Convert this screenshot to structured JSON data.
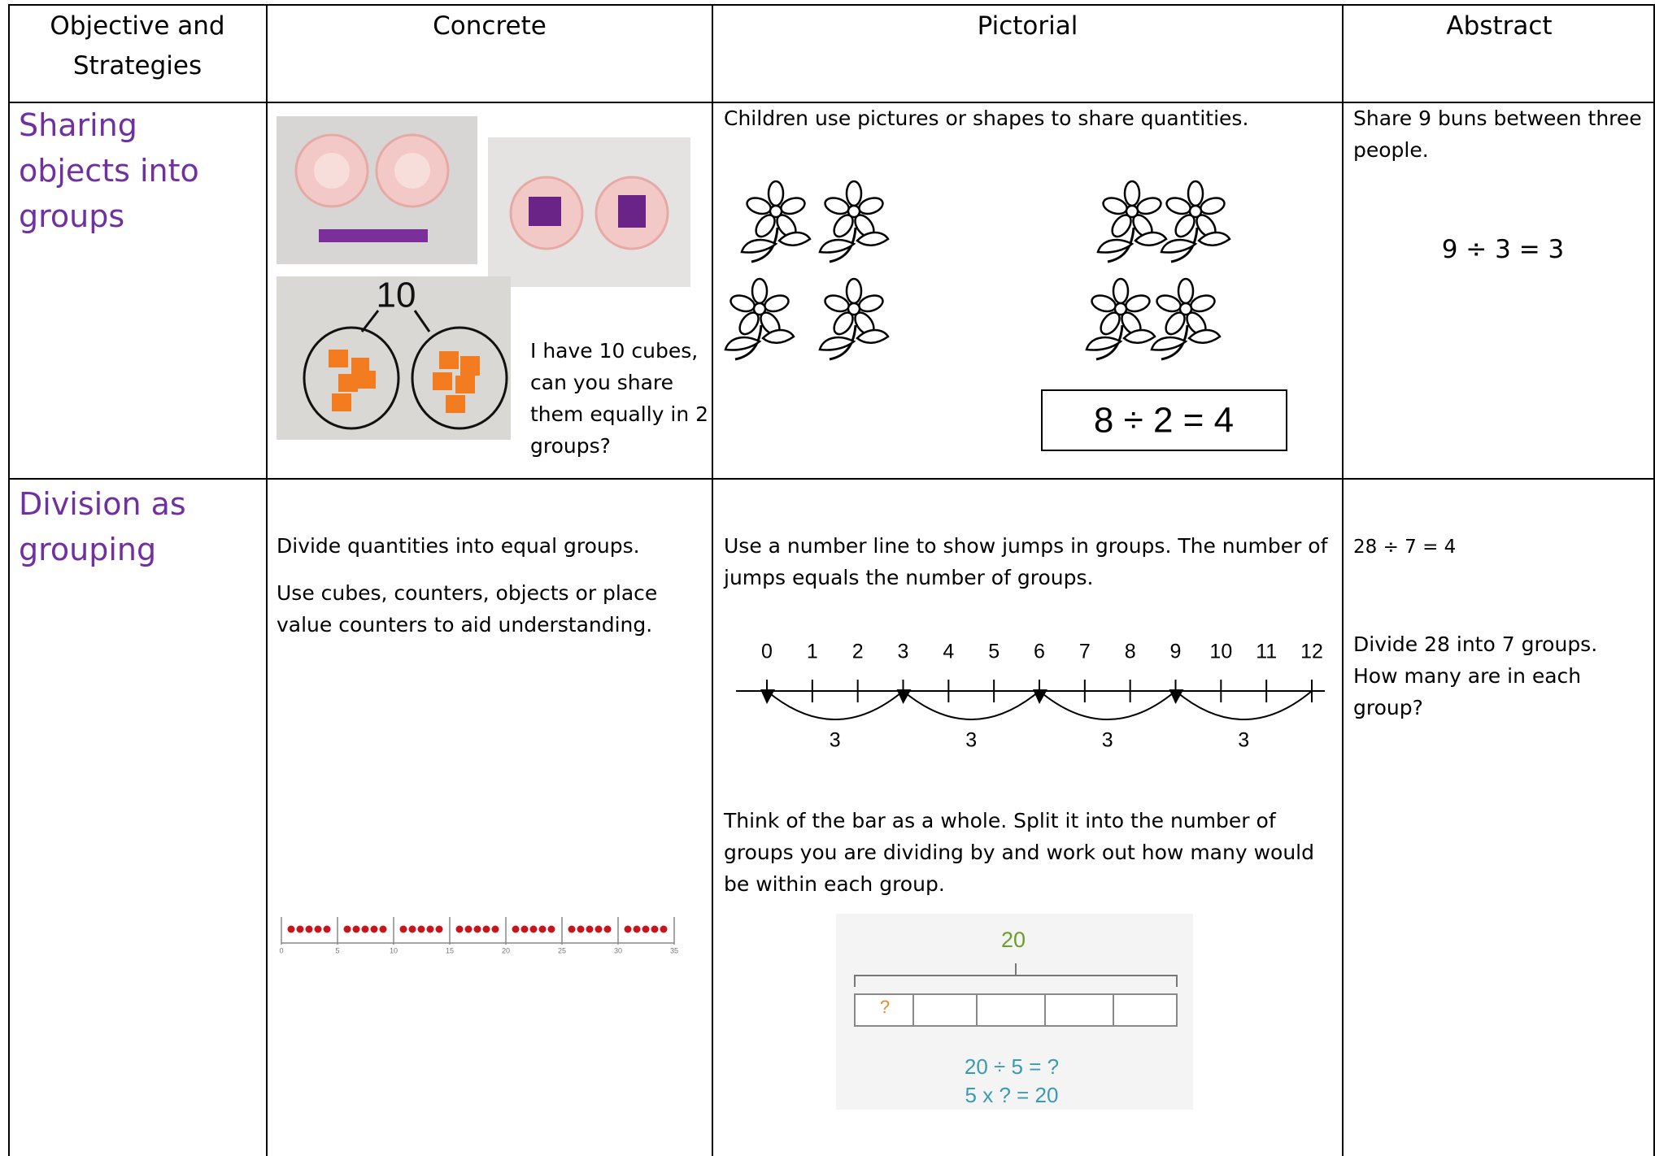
{
  "header": [
    "Objective and Strategies",
    "Concrete",
    "Pictorial",
    "Abstract"
  ],
  "rows": [
    {
      "objective": "Sharing objects into groups",
      "concrete": {
        "photo_label": "10",
        "text": "I have 10 cubes, can you share them equally in 2 groups?"
      },
      "pictorial": {
        "text": "Children use pictures or shapes to share quantities.",
        "equation": "8 ÷ 2 = 4"
      },
      "abstract": {
        "text": "Share 9 buns between three people.",
        "equation": "9 ÷ 3 = 3"
      }
    },
    {
      "objective": "Division as grouping",
      "concrete": {
        "paragraphs": [
          "Divide quantities into equal groups.",
          "Use cubes, counters, objects or place value counters to aid understanding."
        ],
        "number_line_labels": [
          "0",
          "5",
          "10",
          "15",
          "20",
          "25",
          "30",
          "35"
        ]
      },
      "pictorial": {
        "text1": "Use a number line to show jumps in groups. The number of jumps equals the number of groups.",
        "number_line_labels": [
          "0",
          "1",
          "2",
          "3",
          "4",
          "5",
          "6",
          "7",
          "8",
          "9",
          "10",
          "11",
          "12"
        ],
        "jump_labels": [
          "3",
          "3",
          "3",
          "3"
        ],
        "text2": "Think of the bar as a whole. Split it into the number of groups you are dividing by and work out how many would be within each group.",
        "bar_total": "20",
        "bar_unknown": "?",
        "bar_equations": [
          "20 ÷ 5 = ?",
          "5 x ? = 20"
        ]
      },
      "abstract": {
        "equation": "28 ÷ 7 = 4",
        "text": "Divide 28 into 7 groups. How many are in each group?"
      }
    }
  ]
}
